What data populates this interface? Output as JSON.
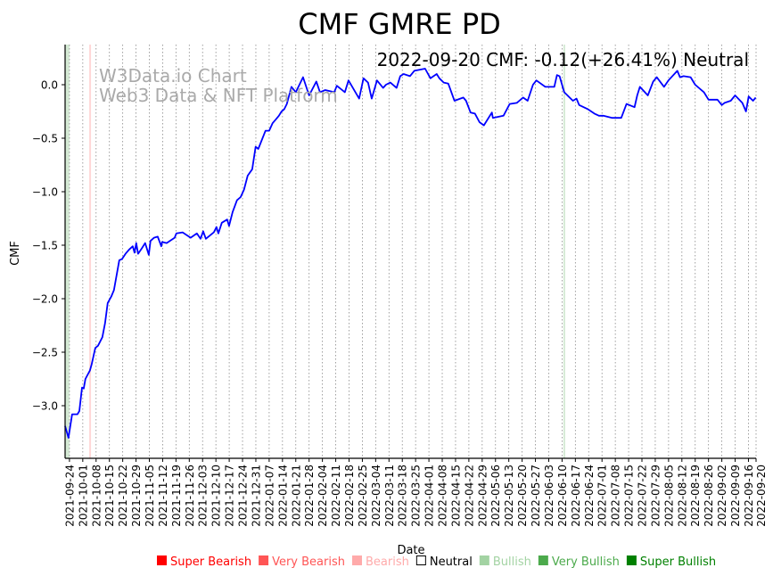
{
  "chart_data": {
    "type": "line",
    "title": "CMF GMRE PD",
    "annotation": "2022-09-20 CMF: -0.12(+26.41%) Neutral",
    "watermark": [
      "W3Data.io Chart",
      "Web3 Data & NFT Platform"
    ],
    "xlabel": "Date",
    "ylabel": "CMF",
    "x_unit": "days since 2021-09-24",
    "x_start_date": "2021-09-24",
    "xlim": [
      -2.3,
      361
    ],
    "ylim": [
      -3.5,
      0.37
    ],
    "yticks": [
      0.0,
      -0.5,
      -1.0,
      -1.5,
      -2.0,
      -2.5,
      -3.0
    ],
    "ytick_labels": [
      "0.0",
      "−0.5",
      "−1.0",
      "−1.5",
      "−2.0",
      "−2.5",
      "−3.0"
    ],
    "xtick_labels": [
      "2021-09-24",
      "2021-10-01",
      "2021-10-08",
      "2021-10-15",
      "2021-10-22",
      "2021-10-29",
      "2021-11-05",
      "2021-11-12",
      "2021-11-19",
      "2021-11-26",
      "2021-12-03",
      "2021-12-10",
      "2021-12-17",
      "2021-12-24",
      "2021-12-31",
      "2022-01-07",
      "2022-01-14",
      "2022-01-21",
      "2022-01-28",
      "2022-02-04",
      "2022-02-11",
      "2022-02-18",
      "2022-02-25",
      "2022-03-04",
      "2022-03-11",
      "2022-03-18",
      "2022-03-25",
      "2022-04-01",
      "2022-04-08",
      "2022-04-15",
      "2022-04-22",
      "2022-04-29",
      "2022-05-06",
      "2022-05-13",
      "2022-05-20",
      "2022-05-27",
      "2022-06-03",
      "2022-06-10",
      "2022-06-17",
      "2022-06-24",
      "2022-07-01",
      "2022-07-08",
      "2022-07-15",
      "2022-07-22",
      "2022-07-29",
      "2022-08-05",
      "2022-08-12",
      "2022-08-19",
      "2022-08-26",
      "2022-09-02",
      "2022-09-09",
      "2022-09-16",
      "2022-09-20"
    ],
    "xtick_days": [
      0,
      7,
      14,
      21,
      28,
      35,
      42,
      49,
      56,
      63,
      70,
      77,
      84,
      91,
      98,
      105,
      112,
      119,
      126,
      133,
      140,
      147,
      154,
      161,
      168,
      175,
      182,
      189,
      196,
      203,
      210,
      217,
      224,
      231,
      238,
      245,
      252,
      259,
      266,
      273,
      280,
      287,
      294,
      301,
      308,
      315,
      322,
      329,
      336,
      343,
      350,
      357,
      361
    ],
    "grid": "vertical-dotted",
    "line_color": "#0000ff",
    "regions": [
      {
        "from": -2.3,
        "to": 0,
        "signal": "Bullish",
        "color": "#d5ead5"
      },
      {
        "from": 10.4,
        "to": 11.3,
        "signal": "Bearish",
        "color": "#ffd6d6"
      },
      {
        "from": 259.7,
        "to": 260.6,
        "signal": "Bullish",
        "color": "#d5ead5"
      }
    ],
    "series": [
      {
        "name": "CMF",
        "points": [
          [
            -2.3,
            -3.19
          ],
          [
            -0.5,
            -3.3
          ],
          [
            1.4,
            -3.08
          ],
          [
            4.2,
            -3.08
          ],
          [
            5.2,
            -3.05
          ],
          [
            6.6,
            -2.83
          ],
          [
            7.5,
            -2.84
          ],
          [
            8.4,
            -2.75
          ],
          [
            10.8,
            -2.67
          ],
          [
            11.7,
            -2.61
          ],
          [
            13.6,
            -2.46
          ],
          [
            15.0,
            -2.44
          ],
          [
            17.3,
            -2.36
          ],
          [
            18.7,
            -2.23
          ],
          [
            20.1,
            -2.04
          ],
          [
            22.0,
            -1.98
          ],
          [
            23.4,
            -1.92
          ],
          [
            26.2,
            -1.64
          ],
          [
            27.6,
            -1.63
          ],
          [
            29.5,
            -1.58
          ],
          [
            31.4,
            -1.54
          ],
          [
            33.3,
            -1.51
          ],
          [
            34.2,
            -1.57
          ],
          [
            35.1,
            -1.48
          ],
          [
            36.1,
            -1.58
          ],
          [
            38.0,
            -1.53
          ],
          [
            39.8,
            -1.48
          ],
          [
            41.7,
            -1.59
          ],
          [
            42.6,
            -1.46
          ],
          [
            44.5,
            -1.43
          ],
          [
            46.4,
            -1.42
          ],
          [
            48.3,
            -1.51
          ],
          [
            48.7,
            -1.47
          ],
          [
            51.1,
            -1.48
          ],
          [
            55.3,
            -1.43
          ],
          [
            56.2,
            -1.39
          ],
          [
            59.5,
            -1.38
          ],
          [
            63.7,
            -1.43
          ],
          [
            67.0,
            -1.39
          ],
          [
            68.9,
            -1.44
          ],
          [
            70.3,
            -1.37
          ],
          [
            71.7,
            -1.44
          ],
          [
            75.9,
            -1.38
          ],
          [
            77.3,
            -1.33
          ],
          [
            78.3,
            -1.39
          ],
          [
            80.1,
            -1.29
          ],
          [
            82.9,
            -1.26
          ],
          [
            83.9,
            -1.32
          ],
          [
            85.8,
            -1.19
          ],
          [
            88.1,
            -1.08
          ],
          [
            90.0,
            -1.05
          ],
          [
            91.8,
            -0.98
          ],
          [
            93.7,
            -0.85
          ],
          [
            96.1,
            -0.79
          ],
          [
            97.9,
            -0.58
          ],
          [
            99.3,
            -0.6
          ],
          [
            103.1,
            -0.43
          ],
          [
            105.0,
            -0.43
          ],
          [
            106.8,
            -0.36
          ],
          [
            108.7,
            -0.32
          ],
          [
            110.1,
            -0.29
          ],
          [
            111.5,
            -0.25
          ],
          [
            112.9,
            -0.23
          ],
          [
            114.3,
            -0.18
          ],
          [
            116.7,
            -0.02
          ],
          [
            119.0,
            -0.07
          ],
          [
            122.8,
            0.07
          ],
          [
            126.0,
            -0.1
          ],
          [
            129.8,
            0.03
          ],
          [
            131.7,
            -0.07
          ],
          [
            134.5,
            -0.05
          ],
          [
            139.2,
            -0.07
          ],
          [
            140.6,
            -0.01
          ],
          [
            144.8,
            -0.07
          ],
          [
            146.7,
            0.04
          ],
          [
            152.3,
            -0.13
          ],
          [
            154.6,
            0.06
          ],
          [
            157.0,
            0.02
          ],
          [
            158.9,
            -0.13
          ],
          [
            161.7,
            0.04
          ],
          [
            164.9,
            -0.03
          ],
          [
            166.4,
            0.0
          ],
          [
            168.7,
            0.02
          ],
          [
            172.0,
            -0.03
          ],
          [
            173.9,
            0.08
          ],
          [
            175.7,
            0.1
          ],
          [
            179.0,
            0.08
          ],
          [
            181.3,
            0.13
          ],
          [
            187.0,
            0.15
          ],
          [
            189.8,
            0.06
          ],
          [
            193.1,
            0.1
          ],
          [
            194.5,
            0.06
          ],
          [
            196.8,
            0.02
          ],
          [
            199.2,
            0.01
          ],
          [
            202.4,
            -0.15
          ],
          [
            207.1,
            -0.12
          ],
          [
            208.5,
            -0.15
          ],
          [
            210.9,
            -0.26
          ],
          [
            213.2,
            -0.27
          ],
          [
            215.6,
            -0.35
          ],
          [
            217.9,
            -0.38
          ],
          [
            222.1,
            -0.26
          ],
          [
            222.6,
            -0.31
          ],
          [
            228.2,
            -0.29
          ],
          [
            231.5,
            -0.18
          ],
          [
            235.2,
            -0.17
          ],
          [
            238.5,
            -0.12
          ],
          [
            240.9,
            -0.15
          ],
          [
            243.7,
            0.0
          ],
          [
            245.5,
            0.04
          ],
          [
            250.2,
            -0.02
          ],
          [
            254.9,
            -0.02
          ],
          [
            256.3,
            0.09
          ],
          [
            257.7,
            0.08
          ],
          [
            260.1,
            -0.07
          ],
          [
            264.7,
            -0.15
          ],
          [
            266.6,
            -0.13
          ],
          [
            268.0,
            -0.19
          ],
          [
            272.7,
            -0.23
          ],
          [
            276.0,
            -0.27
          ],
          [
            278.4,
            -0.29
          ],
          [
            280.7,
            -0.29
          ],
          [
            285.4,
            -0.31
          ],
          [
            290.1,
            -0.31
          ],
          [
            292.9,
            -0.18
          ],
          [
            297.1,
            -0.21
          ],
          [
            298.5,
            -0.1
          ],
          [
            299.9,
            -0.02
          ],
          [
            304.1,
            -0.1
          ],
          [
            306.9,
            0.03
          ],
          [
            308.8,
            0.07
          ],
          [
            312.6,
            -0.02
          ],
          [
            314.9,
            0.04
          ],
          [
            319.6,
            0.13
          ],
          [
            321.0,
            0.07
          ],
          [
            322.9,
            0.08
          ],
          [
            326.6,
            0.07
          ],
          [
            329.0,
            0.0
          ],
          [
            333.6,
            -0.07
          ],
          [
            336.0,
            -0.14
          ],
          [
            340.7,
            -0.14
          ],
          [
            343.0,
            -0.19
          ],
          [
            344.4,
            -0.17
          ],
          [
            347.7,
            -0.15
          ],
          [
            350.0,
            -0.1
          ],
          [
            353.8,
            -0.17
          ],
          [
            355.7,
            -0.25
          ],
          [
            357.1,
            -0.11
          ],
          [
            359.4,
            -0.15
          ],
          [
            360.8,
            -0.12
          ]
        ]
      }
    ],
    "legend": {
      "placement": "bottom",
      "items": [
        {
          "label": "Super Bearish",
          "color": "#ff0000"
        },
        {
          "label": "Very Bearish",
          "color": "#ff5555"
        },
        {
          "label": "Bearish",
          "color": "#ffaaaa"
        },
        {
          "label": "Neutral",
          "color": "#000000",
          "hollow": true
        },
        {
          "label": "Bullish",
          "color": "#a3d3a3"
        },
        {
          "label": "Very Bullish",
          "color": "#4caa4c"
        },
        {
          "label": "Super Bullish",
          "color": "#008000"
        }
      ]
    }
  }
}
